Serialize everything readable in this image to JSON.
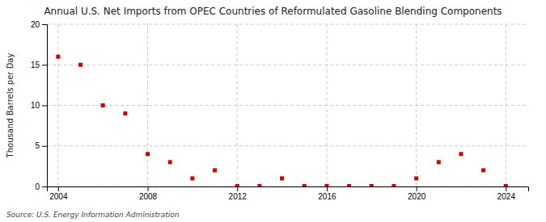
{
  "chart_data": {
    "type": "scatter",
    "title": "Annual U.S. Net Imports from OPEC Countries of Reformulated Gasoline Blending Components",
    "y_label": "Thousand Barrels per Day",
    "annotations": [
      "Source: U.S. Energy Information Administration"
    ],
    "x": [
      2004,
      2005,
      2006,
      2007,
      2008,
      2009,
      2010,
      2011,
      2012,
      2013,
      2014,
      2015,
      2016,
      2017,
      2018,
      2019,
      2020,
      2021,
      2022,
      2023,
      2024
    ],
    "values": [
      16.0,
      15.0,
      10.0,
      9.0,
      4.0,
      3.0,
      1.0,
      2.0,
      0.05,
      0.05,
      1.0,
      0.05,
      0.05,
      0.05,
      0.05,
      0.05,
      1.0,
      3.0,
      4.0,
      2.0,
      0.05
    ],
    "color": "#cc0000",
    "marker": "square",
    "xlim": [
      2003.5,
      2025
    ],
    "ylim": [
      0,
      20
    ],
    "xticks": [
      2004,
      2008,
      2012,
      2016,
      2020,
      2024
    ],
    "yticks": [
      0,
      5,
      10,
      15,
      20
    ],
    "grid": true
  }
}
